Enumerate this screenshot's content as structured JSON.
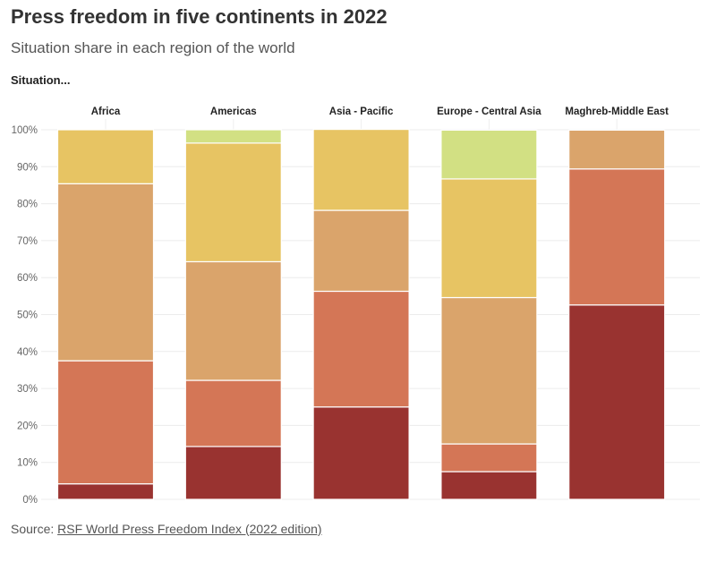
{
  "title": "Press freedom in five continents in 2022",
  "subtitle": "Situation share in each region of the world",
  "legend_title": "Situation...",
  "source": {
    "prefix": "Source: ",
    "link_text": "RSF World Press Freedom Index (2022 edition)"
  },
  "chart_data": {
    "type": "bar",
    "stacked": true,
    "faceted": true,
    "categories": [
      "Africa",
      "Americas",
      "Asia - Pacific",
      "Europe - Central Asia",
      "Maghreb-Middle East"
    ],
    "series": [
      {
        "color": "#993330",
        "values": [
          4.2,
          14.3,
          25.0,
          7.5,
          52.6
        ]
      },
      {
        "color": "#d47656",
        "values": [
          33.3,
          17.9,
          31.3,
          7.5,
          36.8
        ]
      },
      {
        "color": "#daa46b",
        "values": [
          47.9,
          32.1,
          21.9,
          39.6,
          10.5
        ]
      },
      {
        "color": "#e7c463",
        "values": [
          14.6,
          32.1,
          21.9,
          32.1,
          0
        ]
      },
      {
        "color": "#d2e083",
        "values": [
          0,
          3.6,
          0,
          13.2,
          0
        ]
      }
    ],
    "ylim": [
      0,
      100
    ],
    "yticks": [
      "0%",
      "10%",
      "20%",
      "30%",
      "40%",
      "50%",
      "60%",
      "70%",
      "80%",
      "90%",
      "100%"
    ],
    "grid": true
  }
}
